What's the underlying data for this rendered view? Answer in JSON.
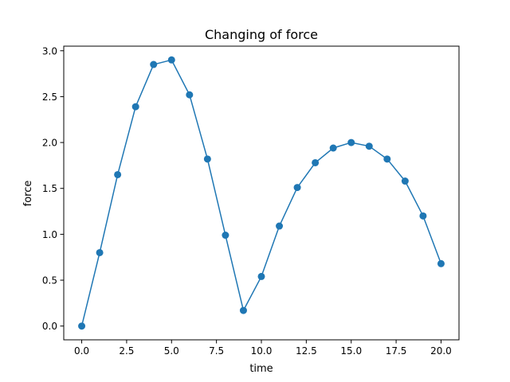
{
  "chart_data": {
    "type": "line",
    "title": "Changing of force",
    "xlabel": "time",
    "ylabel": "force",
    "xlim": [
      -1,
      21
    ],
    "ylim": [
      -0.15,
      3.05
    ],
    "xticks": [
      0,
      2.5,
      5,
      7.5,
      10,
      12.5,
      15,
      17.5,
      20
    ],
    "xtick_labels": [
      "0.0",
      "2.5",
      "5.0",
      "7.5",
      "10.0",
      "12.5",
      "15.0",
      "17.5",
      "20.0"
    ],
    "yticks": [
      0,
      0.5,
      1,
      1.5,
      2,
      2.5,
      3
    ],
    "ytick_labels": [
      "0.0",
      "0.5",
      "1.0",
      "1.5",
      "2.0",
      "2.5",
      "3.0"
    ],
    "grid": false,
    "series": [
      {
        "color": "#1f77b4",
        "marker": "circle",
        "x": [
          0,
          1,
          2,
          3,
          4,
          5,
          6,
          7,
          8,
          9,
          10,
          11,
          12,
          13,
          14,
          15,
          16,
          17,
          18,
          19,
          20
        ],
        "y": [
          0.0,
          0.8,
          1.65,
          2.39,
          2.85,
          2.9,
          2.52,
          1.82,
          0.99,
          0.17,
          0.54,
          1.09,
          1.51,
          1.78,
          1.94,
          2.0,
          1.96,
          1.82,
          1.58,
          1.2,
          0.68
        ]
      }
    ]
  }
}
